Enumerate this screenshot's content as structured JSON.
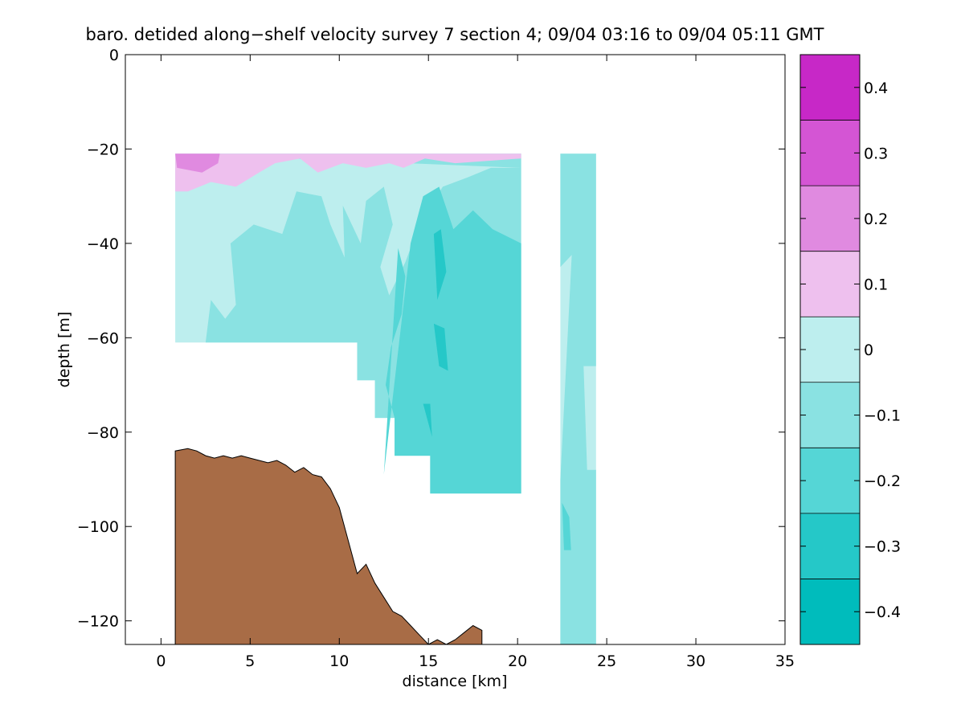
{
  "chart_data": {
    "type": "heatmap",
    "title": "baro. detided along−shelf velocity survey 7 section 4; 09/04 03:16 to 09/04 05:11 GMT",
    "xlabel": "distance [km]",
    "ylabel": "depth [m]",
    "xlim": [
      -2,
      35
    ],
    "ylim": [
      -125,
      0
    ],
    "x_ticks": [
      0,
      5,
      10,
      15,
      20,
      25,
      30,
      35
    ],
    "x_tick_labels": [
      "0",
      "5",
      "10",
      "15",
      "20",
      "25",
      "30",
      "35"
    ],
    "y_ticks": [
      0,
      -20,
      -40,
      -60,
      -80,
      -100,
      -120
    ],
    "y_tick_labels": [
      "0",
      "−20",
      "−40",
      "−60",
      "−80",
      "−100",
      "−120"
    ],
    "colorbar": {
      "levels": [
        -0.45,
        -0.35,
        -0.25,
        -0.15,
        -0.05,
        0.05,
        0.15,
        0.25,
        0.35,
        0.45
      ],
      "colors": [
        "#00bcbc",
        "#25c8c8",
        "#55d6d6",
        "#8ae2e2",
        "#bdeeee",
        "#eec0ee",
        "#e08ae0",
        "#d455d4",
        "#c728c7"
      ],
      "ticks": [
        -0.4,
        -0.3,
        -0.2,
        -0.1,
        0,
        0.1,
        0.2,
        0.3,
        0.4
      ],
      "tick_labels": [
        "−0.4",
        "−0.3",
        "−0.2",
        "−0.1",
        "0",
        "0.1",
        "0.2",
        "0.3",
        "0.4"
      ]
    },
    "colors": {
      "bottom_fill": "#a86c46",
      "pos_light": "#eec0ee",
      "pos_mid": "#e08ae0",
      "neg_1": "#bdeeee",
      "neg_2": "#8ae2e2",
      "neg_3": "#55d6d6",
      "neg_4": "#25c8c8"
    },
    "bathymetry": {
      "x": [
        0.8,
        0.8,
        1.5,
        2.0,
        2.5,
        3.0,
        3.5,
        4.0,
        4.5,
        5.0,
        5.5,
        6.0,
        6.5,
        7.0,
        7.5,
        8.0,
        8.5,
        9.0,
        9.5,
        10.0,
        10.5,
        11.0,
        11.5,
        12.0,
        12.5,
        13.0,
        13.5,
        14.0,
        14.5,
        15.0,
        15.5,
        16.0,
        16.5,
        17.0,
        17.5,
        18.0,
        18.0
      ],
      "depth": [
        -125,
        -84,
        -83.5,
        -84,
        -85,
        -85.5,
        -85,
        -85.5,
        -85,
        -85.5,
        -86,
        -86.5,
        -86,
        -87,
        -88.5,
        -87.5,
        -89,
        -89.5,
        -92,
        -96,
        -103,
        -110,
        -108,
        -112,
        -115,
        -118,
        -119,
        -121,
        -123,
        -125,
        -124,
        -125,
        -124,
        -122.5,
        -121,
        -122,
        -125
      ]
    },
    "data_regions": [
      {
        "x": [
          0.8,
          20.2,
          20.2,
          17.8,
          15.1,
          15.1,
          13.1,
          13.1,
          12.0,
          12.0,
          11.0,
          11.0,
          0.8
        ],
        "depth": [
          -21,
          -21,
          -93,
          -93,
          -93,
          -85,
          -85,
          -77,
          -77,
          -69,
          -69,
          -61,
          -61
        ]
      },
      {
        "x": [
          22.4,
          24.4,
          24.4,
          22.4
        ],
        "depth": [
          -21,
          -21,
          -125,
          -125
        ]
      }
    ],
    "contour_patches": [
      {
        "level": -0.15,
        "x": [
          0.8,
          20.2,
          20.2,
          17.8,
          15.1,
          15.1,
          13.1,
          13.1,
          12.0,
          12.0,
          11.0,
          11.0,
          2.5,
          2.8,
          3.6,
          4.2,
          3.9,
          5.2,
          6.8,
          7.6,
          9.0,
          9.5,
          10.3,
          10.2,
          11.2,
          11.5,
          12.5,
          13.0,
          12.3,
          12.8,
          13.7,
          14.5,
          15.8,
          17.2,
          18.5,
          20.2
        ],
        "depth": [
          -21,
          -21,
          -93,
          -93,
          -93,
          -85,
          -85,
          -77,
          -77,
          -69,
          -69,
          -61,
          -61,
          -52,
          -56,
          -53,
          -40,
          -36,
          -38,
          -29,
          -30,
          -36,
          -43,
          -32,
          -40,
          -31,
          -28,
          -36,
          -45,
          -51,
          -44,
          -36,
          -28,
          -26,
          -24,
          -24
        ]
      },
      {
        "level": -0.25,
        "x": [
          12.5,
          14.0,
          14.7,
          15.6,
          16.4,
          17.5,
          18.6,
          20.2,
          20.2,
          17.8,
          15.1,
          15.1,
          13.1,
          13.1,
          12.6,
          12.9,
          13.5,
          13.7,
          13.3
        ],
        "depth": [
          -89,
          -40,
          -30,
          -28,
          -37,
          -33,
          -37,
          -40,
          -93,
          -93,
          -93,
          -85,
          -85,
          -77,
          -70,
          -62,
          -55,
          -47,
          -41
        ]
      },
      {
        "level": -0.35,
        "x": [
          15.3,
          15.7,
          16.0,
          15.5
        ],
        "depth": [
          -38,
          -37,
          -46,
          -52
        ]
      },
      {
        "level": -0.35,
        "x": [
          15.3,
          15.9,
          16.1,
          15.6
        ],
        "depth": [
          -57,
          -58,
          -67,
          -66
        ]
      },
      {
        "level": -0.35,
        "x": [
          14.7,
          15.1,
          15.2
        ],
        "depth": [
          -74,
          -74,
          -81
        ]
      },
      {
        "level": 0.05,
        "x": [
          0.8,
          20.2,
          20.2,
          16.5,
          14.8,
          13.6,
          12.8,
          11.5,
          10.2,
          8.8,
          7.8,
          6.4,
          5.5,
          4.2,
          2.8,
          1.5,
          0.8
        ],
        "depth": [
          -21,
          -21,
          -22,
          -23,
          -22,
          -24,
          -23,
          -24,
          -23,
          -25,
          -22,
          -23,
          -25,
          -28,
          -27,
          -29,
          -29
        ]
      },
      {
        "level": 0.15,
        "x": [
          0.8,
          3.3,
          3.2,
          2.3,
          0.9
        ],
        "depth": [
          -21,
          -21,
          -23,
          -25,
          -24
        ]
      },
      {
        "level": -0.15,
        "x": [
          22.4,
          24.4,
          24.4,
          22.4,
          22.4,
          23.1,
          24.0,
          24.4,
          24.4,
          23.7,
          23.9,
          24.4,
          24.4,
          22.4
        ],
        "depth": [
          -21,
          -21,
          -37,
          -45,
          -90,
          -38,
          -30,
          -33,
          -66,
          -66,
          -88,
          -88,
          -125,
          -125
        ]
      },
      {
        "level": -0.25,
        "x": [
          22.5,
          22.9,
          23.0,
          22.6
        ],
        "depth": [
          -95,
          -98,
          -105,
          -105
        ]
      }
    ]
  }
}
